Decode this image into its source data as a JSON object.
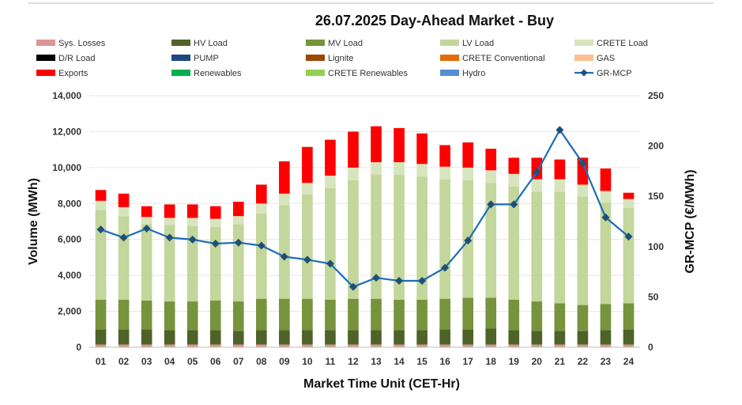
{
  "chart_data": {
    "type": "bar",
    "title": "26.07.2025  Day-Ahead Market - Buy",
    "xlabel": "Market Time Unit (CET-Hr)",
    "ylabel": "Volume (MWh)",
    "y2label": "GR-MCP (€/MWh)",
    "ylim": [
      0,
      14000
    ],
    "y2lim": [
      0,
      250
    ],
    "yticks": [
      "0",
      "2,000",
      "4,000",
      "6,000",
      "8,000",
      "10,000",
      "12,000",
      "14,000"
    ],
    "y2ticks": [
      "0",
      "50",
      "100",
      "150",
      "200",
      "250"
    ],
    "categories": [
      "01",
      "02",
      "03",
      "04",
      "05",
      "06",
      "07",
      "08",
      "09",
      "10",
      "11",
      "12",
      "13",
      "14",
      "15",
      "16",
      "17",
      "18",
      "19",
      "20",
      "21",
      "22",
      "23",
      "24"
    ],
    "series": [
      {
        "name": "Sys. Losses",
        "color": "#d99694",
        "values": [
          150,
          150,
          150,
          150,
          150,
          150,
          150,
          150,
          150,
          150,
          150,
          150,
          150,
          150,
          150,
          150,
          150,
          150,
          150,
          150,
          150,
          150,
          150,
          150
        ]
      },
      {
        "name": "HV Load",
        "color": "#4f6228",
        "values": [
          850,
          850,
          850,
          800,
          800,
          800,
          750,
          800,
          800,
          800,
          800,
          800,
          800,
          800,
          800,
          850,
          850,
          900,
          800,
          750,
          750,
          750,
          800,
          850
        ]
      },
      {
        "name": "MV Load",
        "color": "#77933c",
        "values": [
          1650,
          1650,
          1600,
          1600,
          1600,
          1650,
          1650,
          1750,
          1750,
          1750,
          1700,
          1750,
          1750,
          1700,
          1700,
          1700,
          1750,
          1700,
          1700,
          1650,
          1550,
          1450,
          1450,
          1450
        ]
      },
      {
        "name": "LV Load",
        "color": "#c3d69b",
        "values": [
          5000,
          4650,
          4250,
          4250,
          4200,
          4100,
          4300,
          4750,
          5200,
          5800,
          6200,
          6600,
          6900,
          6950,
          6850,
          6650,
          6550,
          6400,
          6300,
          6100,
          6200,
          6050,
          5650,
          5300
        ]
      },
      {
        "name": "CRETE Load",
        "color": "#d7e4bd",
        "values": [
          500,
          500,
          400,
          400,
          450,
          450,
          450,
          550,
          650,
          650,
          700,
          700,
          700,
          700,
          700,
          700,
          700,
          700,
          700,
          700,
          700,
          650,
          650,
          500
        ]
      },
      {
        "name": "D/R Load",
        "color": "#000000",
        "values": [
          0,
          0,
          0,
          0,
          0,
          0,
          0,
          0,
          0,
          0,
          0,
          0,
          0,
          0,
          0,
          0,
          0,
          0,
          0,
          0,
          0,
          0,
          0,
          0
        ]
      },
      {
        "name": "PUMP",
        "color": "#1f497d",
        "values": [
          0,
          0,
          0,
          0,
          0,
          0,
          0,
          0,
          0,
          0,
          0,
          0,
          0,
          0,
          0,
          0,
          0,
          0,
          0,
          0,
          0,
          0,
          0,
          0
        ]
      },
      {
        "name": "Lignite",
        "color": "#984807",
        "values": [
          0,
          0,
          0,
          0,
          0,
          0,
          0,
          0,
          0,
          0,
          0,
          0,
          0,
          0,
          0,
          0,
          0,
          0,
          0,
          0,
          0,
          0,
          0,
          0
        ]
      },
      {
        "name": "CRETE Conventional",
        "color": "#e36c09",
        "values": [
          0,
          0,
          0,
          0,
          0,
          0,
          0,
          0,
          0,
          0,
          0,
          0,
          0,
          0,
          0,
          0,
          0,
          0,
          0,
          0,
          0,
          0,
          0,
          0
        ]
      },
      {
        "name": "GAS",
        "color": "#fac090",
        "values": [
          0,
          0,
          0,
          0,
          0,
          0,
          0,
          0,
          0,
          0,
          0,
          0,
          0,
          0,
          0,
          0,
          0,
          0,
          0,
          0,
          0,
          0,
          0,
          0
        ]
      },
      {
        "name": "Exports",
        "color": "#ff0000",
        "values": [
          600,
          750,
          600,
          750,
          750,
          700,
          800,
          1050,
          1800,
          2000,
          2000,
          2000,
          2000,
          1900,
          1700,
          1200,
          1400,
          1200,
          900,
          1200,
          1100,
          1500,
          1250,
          350
        ]
      },
      {
        "name": "Renewables",
        "color": "#00b050",
        "values": [
          0,
          0,
          0,
          0,
          0,
          0,
          0,
          0,
          0,
          0,
          0,
          0,
          0,
          0,
          0,
          0,
          0,
          0,
          0,
          0,
          0,
          0,
          0,
          0
        ]
      },
      {
        "name": "CRETE Renewables",
        "color": "#92d050",
        "values": [
          0,
          0,
          0,
          0,
          0,
          0,
          0,
          0,
          0,
          0,
          0,
          0,
          0,
          0,
          0,
          0,
          0,
          0,
          0,
          0,
          0,
          0,
          0,
          0
        ]
      },
      {
        "name": "Hydro",
        "color": "#558ed5",
        "values": [
          0,
          0,
          0,
          0,
          0,
          0,
          0,
          0,
          0,
          0,
          0,
          0,
          0,
          0,
          0,
          0,
          0,
          0,
          0,
          0,
          0,
          0,
          0,
          0
        ]
      }
    ],
    "line": {
      "name": "GR-MCP",
      "color": "#1f6db5",
      "axis": "right",
      "values": [
        117,
        109,
        118,
        109,
        107,
        103,
        104,
        101,
        90,
        87,
        83,
        60,
        69,
        66,
        66,
        79,
        106,
        142,
        142,
        174,
        216,
        183,
        129,
        110
      ]
    },
    "legend": "top"
  }
}
